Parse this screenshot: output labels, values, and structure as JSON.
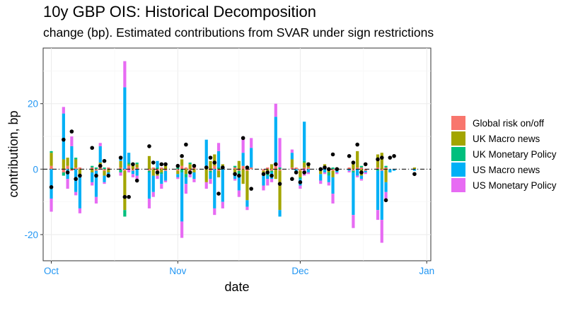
{
  "title": "10y GBP OIS: Historical Decomposition",
  "subtitle": "change (bp). Estimated contributions from SVAR under sign restrictions",
  "chart_data": {
    "type": "bar",
    "stacked": true,
    "xlabel": "date",
    "ylabel": "contribution, bp",
    "x_ticks": [
      "Oct",
      "Nov",
      "Dec",
      "Jan"
    ],
    "y_ticks": [
      -20,
      0,
      20
    ],
    "xlim": [
      "2021-09-29",
      "2022-01-02"
    ],
    "ylim": [
      -28,
      37
    ],
    "grid": true,
    "legend_position": "right",
    "reference_line": 0,
    "dates": [
      "2021-10-01",
      "2021-10-04",
      "2021-10-05",
      "2021-10-06",
      "2021-10-07",
      "2021-10-08",
      "2021-10-11",
      "2021-10-12",
      "2021-10-13",
      "2021-10-14",
      "2021-10-15",
      "2021-10-18",
      "2021-10-19",
      "2021-10-20",
      "2021-10-21",
      "2021-10-22",
      "2021-10-25",
      "2021-10-26",
      "2021-10-27",
      "2021-10-28",
      "2021-10-29",
      "2021-11-01",
      "2021-11-02",
      "2021-11-03",
      "2021-11-04",
      "2021-11-05",
      "2021-11-08",
      "2021-11-09",
      "2021-11-10",
      "2021-11-11",
      "2021-11-12",
      "2021-11-15",
      "2021-11-16",
      "2021-11-17",
      "2021-11-18",
      "2021-11-19",
      "2021-11-22",
      "2021-11-23",
      "2021-11-24",
      "2021-11-25",
      "2021-11-26",
      "2021-11-29",
      "2021-11-30",
      "2021-12-01",
      "2021-12-02",
      "2021-12-03",
      "2021-12-06",
      "2021-12-07",
      "2021-12-08",
      "2021-12-09",
      "2021-12-10",
      "2021-12-13",
      "2021-12-14",
      "2021-12-15",
      "2021-12-16",
      "2021-12-17",
      "2021-12-20",
      "2021-12-21",
      "2021-12-22",
      "2021-12-23",
      "2021-12-24",
      "2021-12-29"
    ],
    "series": [
      {
        "name": "Global risk on/off",
        "color": "#F8766D",
        "values": [
          1.0,
          -1.0,
          1.0,
          -0.5,
          0.5,
          0.5,
          0.5,
          -0.5,
          0.5,
          -0.5,
          0.5,
          0.5,
          -0.5,
          1.0,
          -0.5,
          0.5,
          -0.5,
          0.5,
          -0.5,
          0.5,
          -0.5,
          -0.5,
          1.0,
          0.5,
          -0.5,
          0.5,
          0.5,
          -0.5,
          1.0,
          -0.5,
          0.5,
          0.5,
          -0.5,
          1.0,
          -0.5,
          0.5,
          -0.5,
          0.5,
          -0.5,
          1.0,
          -0.5,
          0.5,
          0.5,
          -0.5,
          0.5,
          0.5,
          -0.5,
          0.5,
          0.5,
          -0.5,
          0.5,
          0.5,
          -0.5,
          0.5,
          0.5,
          -0.5,
          0.5,
          -0.5,
          0.5,
          0,
          0,
          0
        ]
      },
      {
        "name": "UK Macro news",
        "color": "#A3A500",
        "values": [
          4.0,
          3.0,
          2.5,
          0.0,
          2.5,
          -2.0,
          -1.0,
          0.0,
          1.5,
          -1.5,
          -1.0,
          2.0,
          -12.0,
          0.5,
          1.5,
          1.0,
          4.0,
          -2.0,
          -1.5,
          -1.0,
          1.0,
          -1.0,
          2.0,
          -1.5,
          1.5,
          -1.0,
          -4.0,
          2.5,
          3.5,
          -2.0,
          1.0,
          -1.0,
          2.5,
          -4.5,
          -9.0,
          0.0,
          -1.5,
          -1.0,
          1.5,
          -3.0,
          -12.0,
          2.5,
          0.0,
          -2.0,
          1.5,
          1.5,
          -1.0,
          1.0,
          -1.0,
          -2.0,
          0.0,
          0.0,
          2.0,
          5.0,
          -2.0,
          0.0,
          4.0,
          5.0,
          -4.0,
          0.0,
          0.0,
          0.5
        ]
      },
      {
        "name": "UK Monetary Policy",
        "color": "#00BF7D",
        "values": [
          0.5,
          -1.0,
          0.0,
          0.5,
          0.5,
          0.0,
          0.5,
          0.5,
          0.0,
          0.5,
          0.0,
          -1.0,
          -2.0,
          0.5,
          0.0,
          0.5,
          -0.5,
          0.0,
          0.5,
          -0.5,
          0.0,
          0.5,
          -1.0,
          -1.0,
          0.5,
          0.0,
          0.0,
          -0.5,
          0.0,
          0.5,
          0.0,
          0.5,
          -1.0,
          0.0,
          0.5,
          0.0,
          0.0,
          -1.0,
          -0.5,
          0.0,
          0.5,
          0.0,
          0.0,
          -0.5,
          0.5,
          0.0,
          0.0,
          0.0,
          -1.0,
          0.5,
          0.0,
          0.0,
          -0.5,
          0.0,
          0.5,
          0.0,
          -0.5,
          0.0,
          0.5,
          0.0,
          0.0,
          0.0
        ]
      },
      {
        "name": "US Macro news",
        "color": "#00B0F6",
        "values": [
          -9.0,
          14.0,
          -3.0,
          6.5,
          -7.0,
          -10.0,
          -3.0,
          -8.0,
          5.0,
          -2.0,
          -1.0,
          1.0,
          25.0,
          3.0,
          -1.0,
          -2.0,
          -8.0,
          -5.0,
          2.0,
          -3.0,
          -3.0,
          -1.0,
          -15.0,
          -2.0,
          -1.0,
          -2.0,
          8.5,
          -2.0,
          -12.0,
          5.0,
          -10.0,
          -2.0,
          -5.0,
          4.0,
          -2.0,
          6.0,
          -3.0,
          -1.0,
          -2.0,
          15.0,
          -2.0,
          2.0,
          -1.0,
          -2.0,
          12.0,
          -1.0,
          -2.0,
          -1.0,
          -2.0,
          -5.0,
          -1.0,
          -0.5,
          -13.0,
          -2.0,
          -1.0,
          -0.5,
          -12.0,
          -15.0,
          -3.0,
          -1.0,
          -0.5,
          -0.5
        ]
      },
      {
        "name": "US Monetary Policy",
        "color": "#E76BF3",
        "values": [
          -4.0,
          2.0,
          -3.0,
          3.0,
          -1.0,
          -1.5,
          -1.0,
          -2.0,
          1.0,
          -0.5,
          -0.5,
          -1.0,
          8.0,
          -1.0,
          -1.0,
          -1.0,
          -3.0,
          -1.5,
          -1.0,
          -1.5,
          -0.5,
          -0.5,
          -5.0,
          -3.0,
          -1.0,
          -1.0,
          -2.0,
          -1.5,
          -2.0,
          2.5,
          -2.0,
          -0.5,
          -2.0,
          5.0,
          -1.0,
          3.0,
          -1.5,
          -2.0,
          -1.0,
          4.0,
          9.0,
          1.0,
          -0.5,
          -1.0,
          -2.0,
          -0.5,
          -1.0,
          -0.5,
          -1.0,
          -3.0,
          -0.5,
          -0.5,
          -4.0,
          -0.5,
          -0.5,
          -0.5,
          -3.0,
          -7.0,
          -2.0,
          0.0,
          0.0,
          0.0
        ]
      }
    ],
    "total": [
      -5.5,
      9.0,
      -1.0,
      11.5,
      -3.0,
      -2.0,
      6.5,
      -2.0,
      1.0,
      2.5,
      -2.0,
      3.5,
      -8.5,
      -8.5,
      1.5,
      -3.5,
      7.0,
      2.0,
      -1.0,
      1.5,
      1.5,
      1.0,
      4.0,
      7.5,
      -1.0,
      1.0,
      0.5,
      3.5,
      2.0,
      -7.5,
      0.5,
      -1.5,
      -2.0,
      9.5,
      0.5,
      -6.0,
      -1.5,
      -1.0,
      -2.0,
      1.5,
      -4.5,
      -3.0,
      -1.0,
      -4.0,
      -1.0,
      1.5,
      0.0,
      0.5,
      0.0,
      4.5,
      0.0,
      4.0,
      2.0,
      7.5,
      -1.0,
      1.5,
      3.0,
      3.5,
      -9.5,
      3.5,
      4.0,
      -1.5
    ]
  }
}
